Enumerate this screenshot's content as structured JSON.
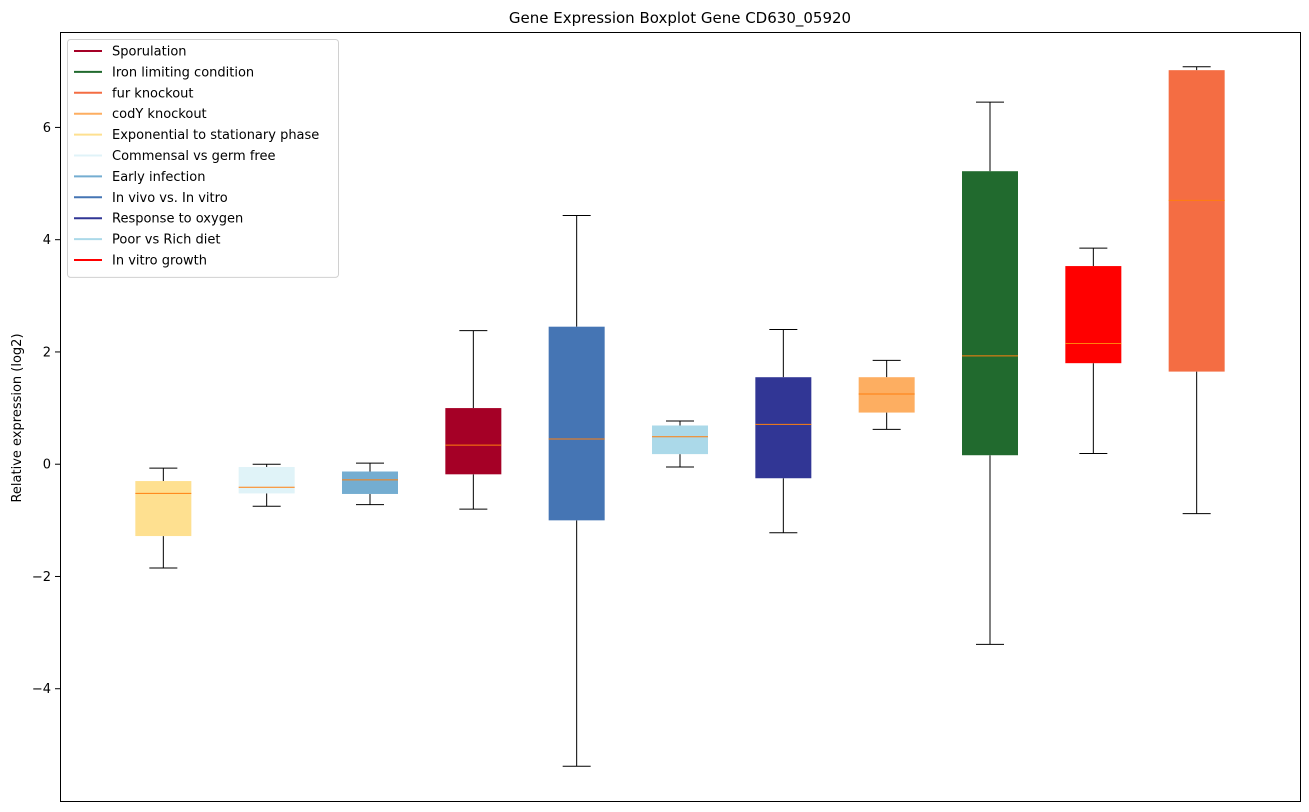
{
  "chart_data": {
    "type": "boxplot",
    "title": "Gene Expression Boxplot Gene CD630_05920",
    "xlabel": "",
    "ylabel": "Relative expression (log2)",
    "ylim": [
      -6.0,
      7.7
    ],
    "yticks": [
      -4,
      -2,
      0,
      2,
      4,
      6
    ],
    "ytick_labels": [
      "−4",
      "−2",
      "0",
      "2",
      "4",
      "6"
    ],
    "grid": false,
    "legend_position": "top-left",
    "median_color": "#ff7f0e",
    "legend": [
      {
        "label": "Sporulation",
        "color": "#a50026"
      },
      {
        "label": "Iron limiting condition",
        "color": "#216a2e"
      },
      {
        "label": "fur knockout",
        "color": "#f46d43"
      },
      {
        "label": "codY knockout",
        "color": "#fdae61"
      },
      {
        "label": "Exponential to stationary phase",
        "color": "#fee090"
      },
      {
        "label": "Commensal vs germ free",
        "color": "#e0f3f8"
      },
      {
        "label": "Early infection",
        "color": "#74add1"
      },
      {
        "label": "In vivo vs. In vitro",
        "color": "#4575b4"
      },
      {
        "label": "Response to oxygen",
        "color": "#313695"
      },
      {
        "label": "Poor vs Rich diet",
        "color": "#abd9e9"
      },
      {
        "label": "In vitro growth",
        "color": "#ff0000"
      }
    ],
    "boxes": [
      {
        "group": "Exponential to stationary phase",
        "color": "#fee090",
        "whislo": -1.85,
        "q1": -1.28,
        "med": -0.52,
        "q3": -0.3,
        "whishi": -0.07
      },
      {
        "group": "Commensal vs germ free",
        "color": "#e0f3f8",
        "whislo": -0.75,
        "q1": -0.52,
        "med": -0.41,
        "q3": -0.05,
        "whishi": 0.0
      },
      {
        "group": "Early infection",
        "color": "#74add1",
        "whislo": -0.72,
        "q1": -0.53,
        "med": -0.28,
        "q3": -0.13,
        "whishi": 0.02
      },
      {
        "group": "Sporulation",
        "color": "#a50026",
        "whislo": -0.8,
        "q1": -0.18,
        "med": 0.34,
        "q3": 1.0,
        "whishi": 2.38
      },
      {
        "group": "In vivo vs. In vitro",
        "color": "#4575b4",
        "whislo": -5.38,
        "q1": -1.0,
        "med": 0.45,
        "q3": 2.45,
        "whishi": 4.43
      },
      {
        "group": "Poor vs Rich diet",
        "color": "#abd9e9",
        "whislo": -0.05,
        "q1": 0.18,
        "med": 0.49,
        "q3": 0.69,
        "whishi": 0.77
      },
      {
        "group": "Response to oxygen",
        "color": "#313695",
        "whislo": -1.22,
        "q1": -0.25,
        "med": 0.71,
        "q3": 1.55,
        "whishi": 2.4
      },
      {
        "group": "codY knockout",
        "color": "#fdae61",
        "whislo": 0.62,
        "q1": 0.92,
        "med": 1.25,
        "q3": 1.55,
        "whishi": 1.85
      },
      {
        "group": "Iron limiting condition",
        "color": "#216a2e",
        "whislo": -3.21,
        "q1": 0.16,
        "med": 1.93,
        "q3": 5.22,
        "whishi": 6.45
      },
      {
        "group": "In vitro growth",
        "color": "#ff0000",
        "whislo": 0.19,
        "q1": 1.8,
        "med": 2.15,
        "q3": 3.53,
        "whishi": 3.85
      },
      {
        "group": "fur knockout",
        "color": "#f46d43",
        "whislo": -0.88,
        "q1": 1.65,
        "med": 4.7,
        "q3": 7.02,
        "whishi": 7.08
      }
    ]
  }
}
